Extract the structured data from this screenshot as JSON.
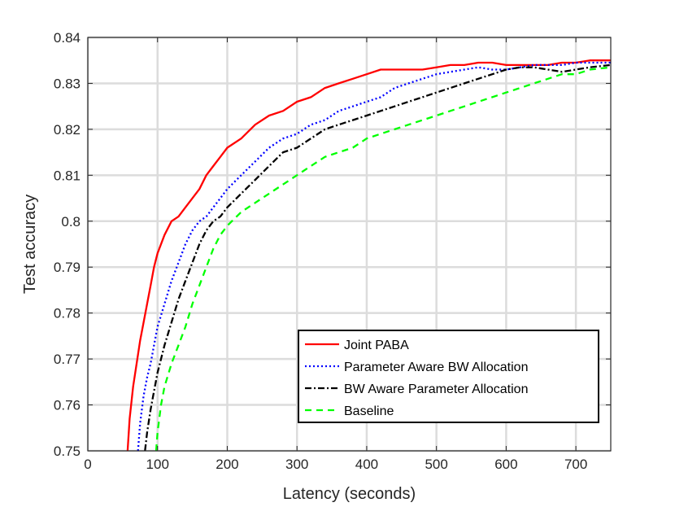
{
  "chart_data": {
    "type": "line",
    "title": "",
    "xlabel": "Latency (seconds)",
    "ylabel": "Test accuracy",
    "xlim": [
      0,
      750
    ],
    "ylim": [
      0.75,
      0.84
    ],
    "x_ticks": [
      0,
      100,
      200,
      300,
      400,
      500,
      600,
      700
    ],
    "x_tick_labels": [
      "0",
      "100",
      "200",
      "300",
      "400",
      "500",
      "600",
      "700"
    ],
    "y_ticks": [
      0.75,
      0.76,
      0.77,
      0.78,
      0.79,
      0.8,
      0.81,
      0.82,
      0.83,
      0.84
    ],
    "y_tick_labels": [
      "0.75",
      "0.76",
      "0.77",
      "0.78",
      "0.79",
      "0.8",
      "0.81",
      "0.82",
      "0.83",
      "0.84"
    ],
    "grid": true,
    "legend_position": "bottom-right",
    "series": [
      {
        "name": "Joint PABA",
        "color": "#ff0000",
        "dash": "solid",
        "x": [
          57,
          60,
          65,
          70,
          75,
          80,
          85,
          90,
          95,
          100,
          110,
          120,
          130,
          140,
          150,
          160,
          170,
          180,
          190,
          200,
          220,
          240,
          260,
          280,
          300,
          320,
          340,
          360,
          380,
          400,
          420,
          440,
          460,
          480,
          500,
          520,
          540,
          560,
          580,
          600,
          620,
          640,
          660,
          680,
          700,
          720,
          750
        ],
        "y": [
          0.75,
          0.757,
          0.764,
          0.769,
          0.774,
          0.778,
          0.782,
          0.786,
          0.79,
          0.793,
          0.797,
          0.8,
          0.801,
          0.803,
          0.805,
          0.807,
          0.81,
          0.812,
          0.814,
          0.816,
          0.818,
          0.821,
          0.823,
          0.824,
          0.826,
          0.827,
          0.829,
          0.83,
          0.831,
          0.832,
          0.833,
          0.833,
          0.833,
          0.833,
          0.8335,
          0.834,
          0.834,
          0.8345,
          0.8345,
          0.834,
          0.834,
          0.834,
          0.834,
          0.8345,
          0.8345,
          0.835,
          0.835
        ]
      },
      {
        "name": "Parameter Aware BW Allocation",
        "color": "#0000ff",
        "dash": "dotted",
        "x": [
          72,
          75,
          80,
          85,
          90,
          95,
          100,
          110,
          120,
          130,
          140,
          150,
          160,
          170,
          180,
          190,
          200,
          220,
          240,
          260,
          280,
          300,
          320,
          340,
          360,
          380,
          400,
          420,
          440,
          460,
          480,
          500,
          520,
          540,
          560,
          580,
          600,
          620,
          640,
          660,
          680,
          700,
          720,
          750
        ],
        "y": [
          0.75,
          0.756,
          0.762,
          0.766,
          0.769,
          0.773,
          0.777,
          0.782,
          0.787,
          0.791,
          0.795,
          0.798,
          0.8,
          0.801,
          0.803,
          0.805,
          0.807,
          0.81,
          0.813,
          0.816,
          0.818,
          0.819,
          0.821,
          0.822,
          0.824,
          0.825,
          0.826,
          0.827,
          0.829,
          0.83,
          0.831,
          0.832,
          0.8325,
          0.833,
          0.8335,
          0.833,
          0.833,
          0.8335,
          0.834,
          0.834,
          0.834,
          0.8345,
          0.8345,
          0.8345
        ]
      },
      {
        "name": "BW Aware Parameter Allocation",
        "color": "#000000",
        "dash": "dashdot",
        "x": [
          82,
          85,
          90,
          95,
          100,
          110,
          120,
          130,
          140,
          150,
          160,
          170,
          180,
          190,
          200,
          220,
          240,
          260,
          280,
          300,
          320,
          340,
          360,
          380,
          400,
          420,
          440,
          460,
          480,
          500,
          520,
          540,
          560,
          580,
          600,
          620,
          640,
          660,
          680,
          700,
          720,
          750
        ],
        "y": [
          0.75,
          0.754,
          0.759,
          0.763,
          0.767,
          0.773,
          0.778,
          0.783,
          0.787,
          0.791,
          0.795,
          0.798,
          0.8,
          0.801,
          0.803,
          0.806,
          0.809,
          0.812,
          0.815,
          0.816,
          0.818,
          0.82,
          0.821,
          0.822,
          0.823,
          0.824,
          0.825,
          0.826,
          0.827,
          0.828,
          0.829,
          0.83,
          0.831,
          0.832,
          0.833,
          0.8335,
          0.8335,
          0.833,
          0.8325,
          0.833,
          0.8335,
          0.834
        ]
      },
      {
        "name": "Baseline",
        "color": "#00ff00",
        "dash": "dashed",
        "x": [
          98,
          100,
          105,
          110,
          120,
          130,
          140,
          150,
          160,
          170,
          180,
          190,
          200,
          220,
          240,
          260,
          280,
          300,
          320,
          340,
          360,
          380,
          400,
          420,
          440,
          460,
          480,
          500,
          520,
          540,
          560,
          580,
          600,
          620,
          640,
          660,
          680,
          700,
          720,
          750
        ],
        "y": [
          0.75,
          0.754,
          0.76,
          0.764,
          0.769,
          0.773,
          0.777,
          0.782,
          0.786,
          0.79,
          0.794,
          0.797,
          0.799,
          0.802,
          0.804,
          0.806,
          0.808,
          0.81,
          0.812,
          0.814,
          0.815,
          0.816,
          0.818,
          0.819,
          0.82,
          0.821,
          0.822,
          0.823,
          0.824,
          0.825,
          0.826,
          0.827,
          0.828,
          0.829,
          0.83,
          0.831,
          0.832,
          0.832,
          0.833,
          0.8335
        ]
      }
    ]
  }
}
